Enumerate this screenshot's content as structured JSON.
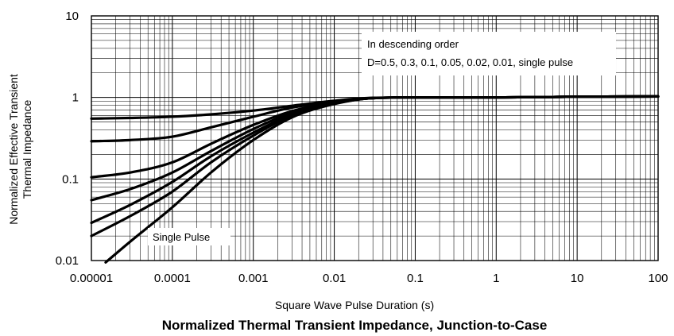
{
  "chart_data": {
    "type": "line",
    "title": "Normalized Thermal Transient Impedance, Junction-to-Case",
    "xlabel": "Square Wave Pulse Duration (s)",
    "ylabel_line1": "Normalized Effective Transient",
    "ylabel_line2": "Thermal Impedance",
    "xscale": "log",
    "yscale": "log",
    "xlim": [
      1e-05,
      100
    ],
    "ylim": [
      0.01,
      10
    ],
    "grid": true,
    "x_tick_labels": [
      "0.00001",
      "0.0001",
      "0.001",
      "0.01",
      "0.1",
      "1",
      "10",
      "100"
    ],
    "y_tick_labels": [
      "0.01",
      "0.1",
      "1",
      "10"
    ],
    "annotations": {
      "legend_line1": "In descending order",
      "legend_line2": "D=0.5, 0.3, 0.1, 0.05, 0.02, 0.01, single pulse",
      "single_pulse_label": "Single Pulse"
    },
    "series": [
      {
        "name": "D=0.5",
        "x": [
          1e-05,
          3e-05,
          0.0001,
          0.0003,
          0.001,
          0.003,
          0.01,
          0.03,
          0.1,
          1,
          10,
          100
        ],
        "y": [
          0.55,
          0.56,
          0.58,
          0.62,
          0.69,
          0.79,
          0.91,
          0.99,
          1.0,
          1.0,
          1.02,
          1.03
        ]
      },
      {
        "name": "D=0.3",
        "x": [
          1e-05,
          3e-05,
          0.0001,
          0.0003,
          0.001,
          0.003,
          0.01,
          0.03,
          0.1,
          1,
          10,
          100
        ],
        "y": [
          0.29,
          0.3,
          0.33,
          0.43,
          0.58,
          0.75,
          0.89,
          0.98,
          1.0,
          1.0,
          1.02,
          1.03
        ]
      },
      {
        "name": "D=0.1",
        "x": [
          1e-05,
          3e-05,
          0.0001,
          0.0003,
          0.001,
          0.003,
          0.01,
          0.03,
          0.1,
          1,
          10,
          100
        ],
        "y": [
          0.105,
          0.12,
          0.16,
          0.27,
          0.46,
          0.68,
          0.87,
          0.98,
          1.0,
          1.0,
          1.02,
          1.03
        ]
      },
      {
        "name": "D=0.05",
        "x": [
          1e-05,
          3e-05,
          0.0001,
          0.0003,
          0.001,
          0.003,
          0.01,
          0.03,
          0.1,
          1,
          10,
          100
        ],
        "y": [
          0.055,
          0.075,
          0.12,
          0.22,
          0.41,
          0.65,
          0.86,
          0.98,
          1.0,
          1.0,
          1.02,
          1.03
        ]
      },
      {
        "name": "D=0.02",
        "x": [
          1e-05,
          3e-05,
          0.0001,
          0.0003,
          0.001,
          0.003,
          0.01,
          0.03,
          0.1,
          1,
          10,
          100
        ],
        "y": [
          0.029,
          0.048,
          0.092,
          0.19,
          0.37,
          0.62,
          0.85,
          0.98,
          1.0,
          1.0,
          1.02,
          1.03
        ]
      },
      {
        "name": "D=0.01",
        "x": [
          1e-05,
          3e-05,
          0.0001,
          0.0003,
          0.001,
          0.003,
          0.01,
          0.03,
          0.1,
          1,
          10,
          100
        ],
        "y": [
          0.02,
          0.035,
          0.07,
          0.16,
          0.34,
          0.6,
          0.84,
          0.98,
          1.0,
          1.0,
          1.02,
          1.03
        ]
      },
      {
        "name": "Single pulse",
        "x": [
          1.5e-05,
          3e-05,
          0.0001,
          0.0003,
          0.001,
          0.003,
          0.01,
          0.03,
          0.1,
          1,
          10,
          100
        ],
        "y": [
          0.0095,
          0.017,
          0.045,
          0.12,
          0.3,
          0.57,
          0.83,
          0.98,
          1.0,
          1.0,
          1.02,
          1.03
        ]
      }
    ]
  }
}
